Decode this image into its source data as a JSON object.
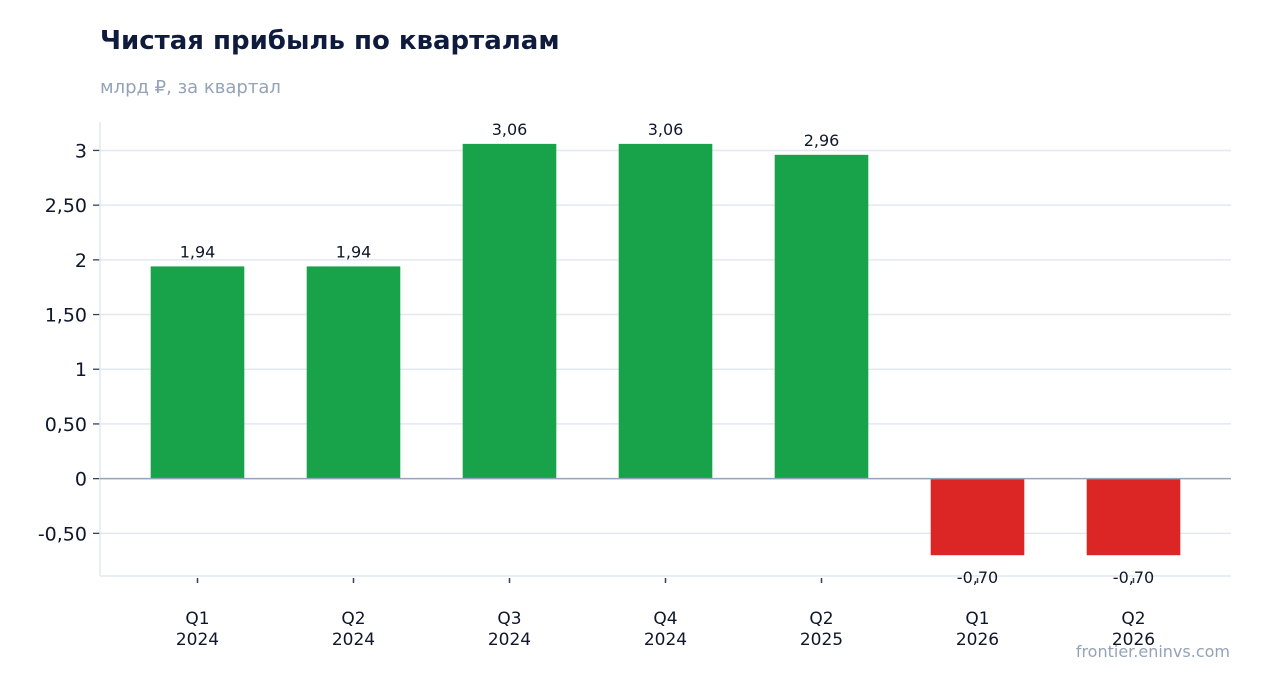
{
  "title": "Чистая прибыль по кварталам",
  "subtitle": "млрд ₽, за квартал",
  "source": "frontier.eninvs.com",
  "colors": {
    "positive": "#18a34a",
    "negative": "#dc2626",
    "grid": "#e2e8f0",
    "zero_line": "#94a3b8"
  },
  "chart_data": {
    "type": "bar",
    "title": "Чистая прибыль по кварталам",
    "subtitle": "млрд ₽, за квартал",
    "categories": [
      "Q1\n2024",
      "Q2\n2024",
      "Q3\n2024",
      "Q4\n2024",
      "Q2\n2025",
      "Q1\n2026",
      "Q2\n2026"
    ],
    "values": [
      1.94,
      1.94,
      3.06,
      3.06,
      2.96,
      -0.7,
      -0.7
    ],
    "value_labels": [
      "1,94",
      "1,94",
      "3,06",
      "3,06",
      "2,96",
      "-0,70",
      "-0,70"
    ],
    "yticks": [
      -0.5,
      0,
      0.5,
      1,
      1.5,
      2,
      2.5,
      3
    ],
    "ytick_labels": [
      "-0,50",
      "0",
      "0,50",
      "1",
      "1,50",
      "2",
      "2,50",
      "3"
    ],
    "ylim": [
      -0.89,
      3.26
    ],
    "xlabel": "",
    "ylabel": "",
    "grid": true,
    "legend": "none"
  }
}
